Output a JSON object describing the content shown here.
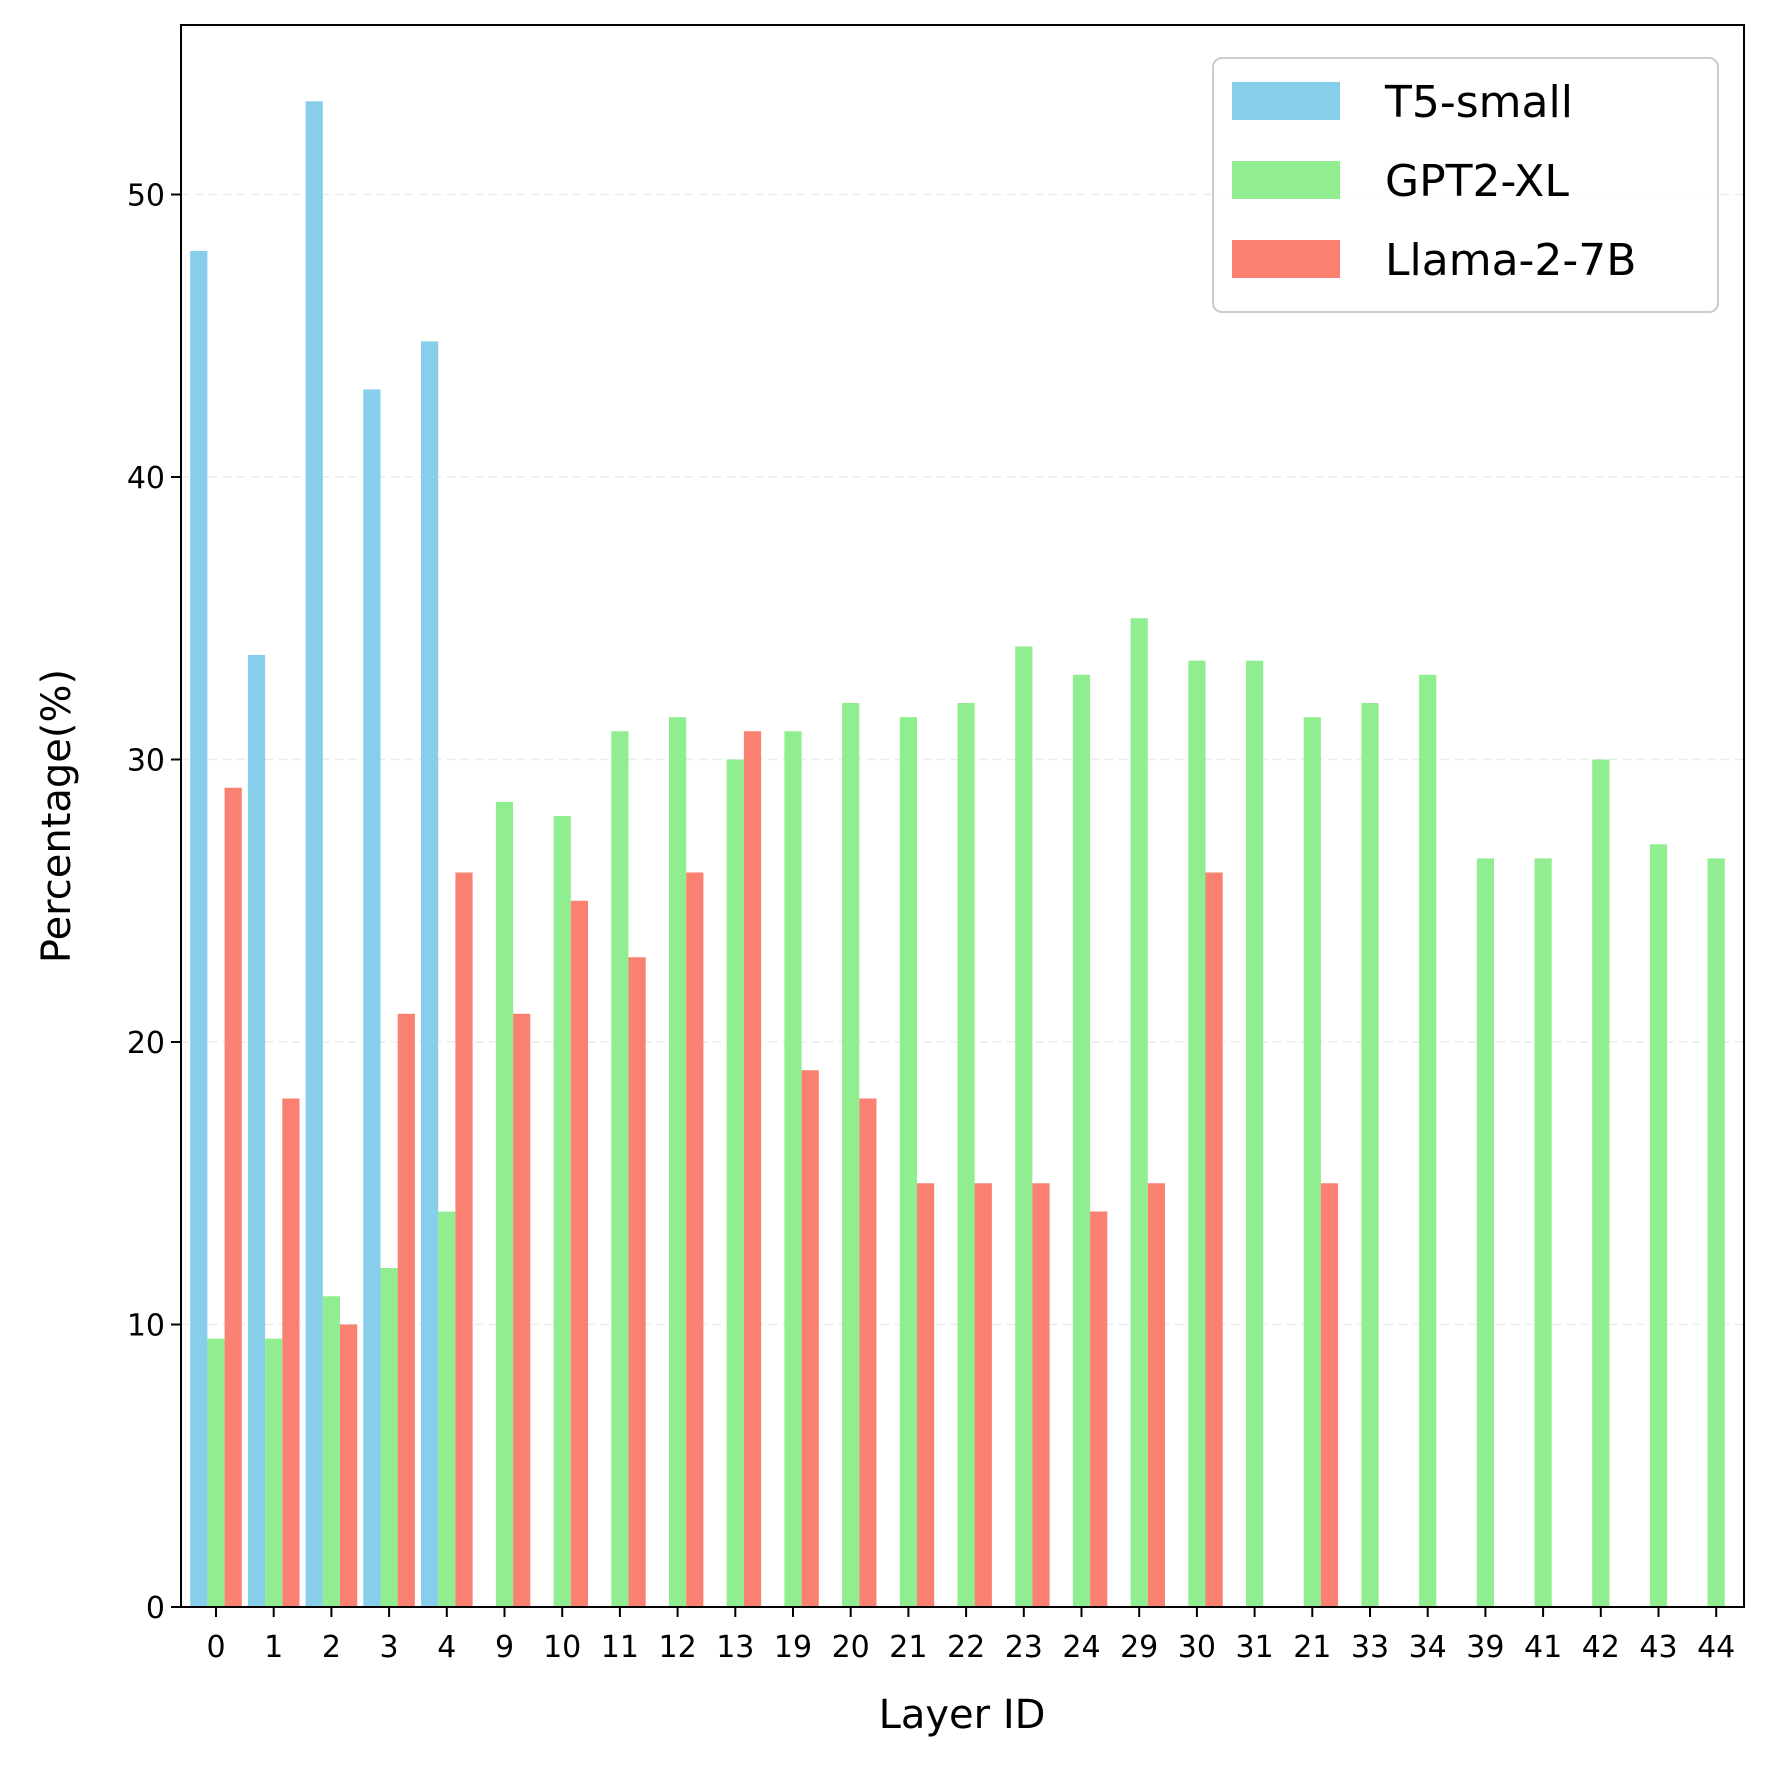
{
  "chart_data": {
    "type": "bar",
    "title": "",
    "xlabel": "Layer ID",
    "ylabel": "Percentage(%)",
    "ylim": [
      0,
      56
    ],
    "yticks": [
      0,
      10,
      20,
      30,
      40,
      50
    ],
    "grid": "y dashed, light",
    "legend_position": "top-right",
    "categories": [
      "0",
      "1",
      "2",
      "3",
      "4",
      "9",
      "10",
      "11",
      "12",
      "13",
      "19",
      "20",
      "21",
      "22",
      "23",
      "24",
      "29",
      "30",
      "31",
      "21",
      "33",
      "34",
      "39",
      "41",
      "42",
      "43",
      "44"
    ],
    "series": [
      {
        "name": "T5-small",
        "color": "#87CEEB",
        "values": [
          48,
          33.7,
          53.3,
          43.1,
          44.8,
          null,
          null,
          null,
          null,
          null,
          null,
          null,
          null,
          null,
          null,
          null,
          null,
          null,
          null,
          null,
          null,
          null,
          null,
          null,
          null,
          null,
          null
        ]
      },
      {
        "name": "GPT2-XL",
        "color": "#90EE90",
        "values": [
          9.5,
          9.5,
          11,
          12,
          14,
          28.5,
          28,
          31,
          31.5,
          30,
          31,
          32,
          31.5,
          32,
          34,
          33,
          35,
          33.5,
          33.5,
          31.5,
          32,
          33,
          26.5,
          26.5,
          30,
          27,
          26.5
        ]
      },
      {
        "name": "Llama-2-7B",
        "color": "#FA8072",
        "values": [
          29,
          18,
          10,
          21,
          26,
          21,
          25,
          23,
          26,
          31,
          19,
          18,
          15,
          15,
          15,
          14,
          15,
          26,
          null,
          15,
          null,
          null,
          null,
          null,
          null,
          null,
          null
        ]
      }
    ]
  }
}
